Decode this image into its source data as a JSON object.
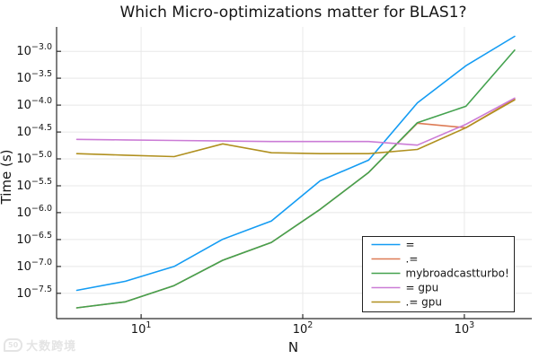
{
  "title": "Which Micro-optimizations matter for BLAS1?",
  "watermark": {
    "logo": "50",
    "text": "大数跨境"
  },
  "chart_data": {
    "type": "line",
    "title": "Which Micro-optimizations matter for BLAS1?",
    "xlabel": "N",
    "ylabel": "Time (s)",
    "x_scale": "log10",
    "y_scale": "log10",
    "grid": true,
    "legend_position": "bottom-right",
    "x": [
      4,
      8,
      16,
      32,
      64,
      128,
      256,
      512,
      1024,
      2048
    ],
    "x_ticks": [
      10,
      100,
      1000
    ],
    "y_tick_exponents": [
      -3.0,
      -3.5,
      -4.0,
      -4.5,
      -5.0,
      -5.5,
      -6.0,
      -6.5,
      -7.0,
      -7.5
    ],
    "xlim": [
      3.0,
      2550
    ],
    "ylim_exponents": [
      -7.97,
      -2.63
    ],
    "colors": {
      "grid": "#e8e8e8",
      "axis": "#2b2b2b",
      "text": "#151515",
      "legend_border": "#222222"
    },
    "series": [
      {
        "name": "=",
        "color": "#149cf3",
        "values": [
          3.6e-08,
          5.3e-08,
          1e-07,
          3.2e-07,
          7e-07,
          3.9e-06,
          9.5e-06,
          0.00011,
          0.00054,
          0.0019
        ]
      },
      {
        "name": ".=",
        "color": "#dd7b55",
        "values": [
          1.7e-08,
          2.2e-08,
          4.4e-08,
          1.3e-07,
          2.8e-07,
          1.15e-06,
          5.6e-06,
          4.6e-05,
          3.8e-05,
          0.00013
        ]
      },
      {
        "name": "mybroadcastturbo!",
        "color": "#44a24f",
        "values": [
          1.7e-08,
          2.2e-08,
          4.4e-08,
          1.3e-07,
          2.8e-07,
          1.15e-06,
          5.6e-06,
          4.7e-05,
          9.5e-05,
          0.00105
        ]
      },
      {
        "name": "= gpu",
        "color": "#cb7cd6",
        "values": [
          2.3e-05,
          2.25e-05,
          2.2e-05,
          2.15e-05,
          2.1e-05,
          2.1e-05,
          2.1e-05,
          1.8e-05,
          4.4e-05,
          0.000135
        ]
      },
      {
        "name": ".= gpu",
        "color": "#b0901f",
        "values": [
          1.25e-05,
          1.17e-05,
          1.1e-05,
          1.9e-05,
          1.3e-05,
          1.25e-05,
          1.25e-05,
          1.5e-05,
          3.8e-05,
          0.000125
        ]
      }
    ]
  }
}
